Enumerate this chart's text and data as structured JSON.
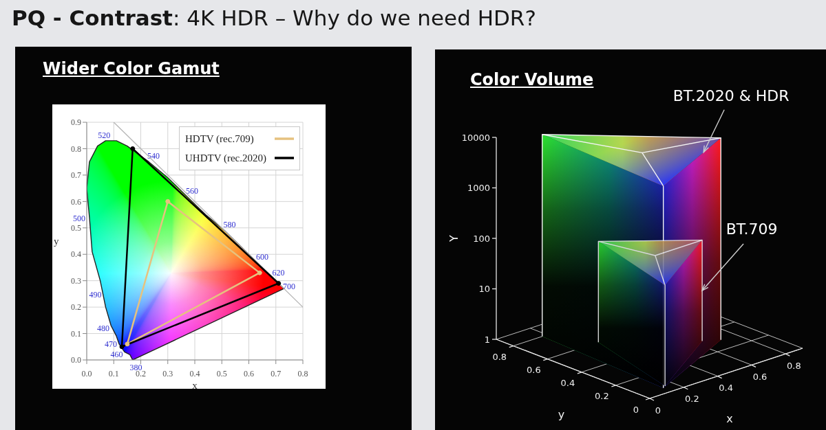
{
  "chart_data": [
    {
      "type": "line",
      "title": "PQ - Contrast: 4K HDR – Why do we need HDR?",
      "subtitle": "Wider Color Gamut",
      "xlabel": "x",
      "ylabel": "y",
      "xlim": [
        0,
        0.8
      ],
      "xticks": [
        {
          "value": 0,
          "label": "0.0"
        },
        0.1,
        0.2,
        0.3,
        0.4,
        0.5,
        0.6,
        0.7,
        0.8
      ],
      "ylim": [
        0,
        0.9
      ],
      "yticks": [
        {
          "value": 0,
          "label": "0.0"
        },
        0.1,
        0.2,
        0.3,
        0.4,
        0.5,
        0.6,
        0.7,
        0.8,
        0.9
      ],
      "grid": true,
      "legend": "top right",
      "series": [
        {
          "color": "#222222",
          "x": [
            0.17,
            0.16,
            0.14,
            0.12,
            0.11,
            0.09,
            0.07,
            0.05,
            0.02,
            0.01,
            0.0
          ],
          "values": [
            0.0,
            0.02,
            0.03,
            0.06,
            0.09,
            0.13,
            0.2,
            0.3,
            0.41,
            0.54,
            0.65
          ]
        },
        {
          "color": "#222222",
          "x": [
            0.0,
            0.01,
            0.04,
            0.07,
            0.11,
            0.15,
            0.23,
            0.3,
            0.37,
            0.44,
            0.51,
            0.58,
            0.63,
            0.67,
            0.69,
            0.72,
            0.73
          ],
          "values": [
            0.65,
            0.75,
            0.81,
            0.83,
            0.83,
            0.81,
            0.75,
            0.69,
            0.62,
            0.55,
            0.49,
            0.42,
            0.37,
            0.33,
            0.31,
            0.28,
            0.27
          ]
        },
        {
          "color": "#222222",
          "x": [
            0.17,
            0.73
          ],
          "values": [
            0.0,
            0.27
          ]
        },
        {
          "color": "#b8b8b8",
          "x": [
            0.1,
            0.8
          ],
          "values": [
            0.9,
            0.2
          ]
        },
        {
          "name": "HDTV (rec.709)",
          "color": "#e6c27f",
          "marker": "circle",
          "x": [
            0.15,
            0.3,
            0.64
          ],
          "values": [
            0.06,
            0.6,
            0.33
          ]
        },
        {
          "color": "#e6c27f",
          "x": [
            0.15,
            0.64
          ],
          "values": [
            0.06,
            0.33
          ]
        },
        {
          "name": "UHDTV (rec.2020)",
          "color": "#000000",
          "marker": "circle",
          "x": [
            0.13,
            0.17,
            0.71
          ],
          "values": [
            0.05,
            0.8,
            0.29
          ]
        },
        {
          "color": "#000000",
          "x": [
            0.13,
            0.71
          ],
          "values": [
            0.05,
            0.29
          ]
        }
      ],
      "annotations": [
        {
          "text": "380",
          "x": 0.17,
          "y": 0.0
        },
        {
          "text": "460",
          "x": 0.14,
          "y": 0.03
        },
        {
          "text": "470",
          "x": 0.12,
          "y": 0.06
        },
        {
          "text": "480",
          "x": 0.09,
          "y": 0.13
        },
        {
          "text": "490",
          "x": 0.05,
          "y": 0.3
        },
        {
          "text": "500",
          "x": 0.01,
          "y": 0.54
        },
        {
          "text": "520",
          "x": 0.07,
          "y": 0.83
        },
        {
          "text": "540",
          "x": 0.23,
          "y": 0.75
        },
        {
          "text": "560",
          "x": 0.37,
          "y": 0.62
        },
        {
          "text": "580",
          "x": 0.51,
          "y": 0.49
        },
        {
          "text": "600",
          "x": 0.63,
          "y": 0.37
        },
        {
          "text": "620",
          "x": 0.69,
          "y": 0.31
        },
        {
          "text": "700",
          "x": 0.73,
          "y": 0.27
        }
      ]
    },
    {
      "type": "other",
      "title": "Color Volume",
      "xlabel": "x",
      "ylabel": "Y",
      "x2label": "y",
      "annotations": [
        "BT.2020 & HDR",
        "BT.709",
        "10000",
        "1000",
        "100",
        "10",
        "1",
        "0.8",
        "0.6",
        "0.4",
        "0.2",
        "0",
        "0",
        "0.2",
        "0.4",
        "0.6",
        "0.8"
      ]
    }
  ]
}
